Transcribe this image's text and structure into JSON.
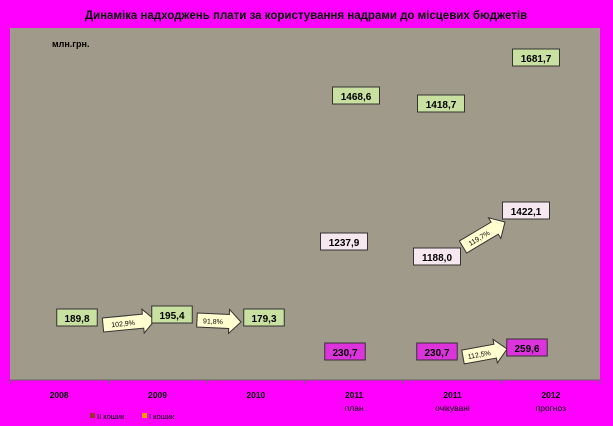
{
  "chart_data": {
    "type": "bar",
    "title": "Динаміка надходжень плати за користування надрами до місцевих бюджетів",
    "unit_label": "млн.грн.",
    "categories": [
      {
        "year": "2008",
        "sub": ""
      },
      {
        "year": "2009",
        "sub": ""
      },
      {
        "year": "2010",
        "sub": ""
      },
      {
        "year": "2011",
        "sub": "план"
      },
      {
        "year": "2011",
        "sub": "очікувані"
      },
      {
        "year": "2012",
        "sub": "прогноз"
      }
    ],
    "series": [
      {
        "name": "II кошик",
        "color": "#993333",
        "values": [
          null,
          null,
          null,
          1468.6,
          1418.7,
          1681.7
        ],
        "labels": [
          null,
          null,
          null,
          "1468,6",
          "1418,7",
          "1681,7"
        ],
        "box_color": "#c8e0a0"
      },
      {
        "name": "I кошик",
        "color": "#ff9900",
        "values": [
          189.8,
          195.4,
          179.3,
          1237.9,
          1188.0,
          1422.1
        ],
        "labels": [
          "189,8",
          "195,4",
          "179,3",
          "1237,9",
          "1188,0",
          "1422,1"
        ]
      },
      {
        "name": "",
        "values": [
          null,
          null,
          null,
          230.7,
          230.7,
          259.6
        ],
        "labels": [
          null,
          null,
          null,
          "230,7",
          "230,7",
          "259,6"
        ],
        "box_color": "#dd33dd"
      }
    ],
    "arrows": [
      {
        "from": 0,
        "to": 1,
        "label": "102,9%"
      },
      {
        "from": 1,
        "to": 2,
        "label": "91,8%"
      },
      {
        "from": 4,
        "to": 5,
        "label": "119,7%"
      },
      {
        "from": 4,
        "to": 5,
        "label": "112,5%"
      }
    ],
    "legend_position": "bottom-left",
    "colors": {
      "page": "#ff00ff",
      "plot": "#a09a8a",
      "box_green": "#c8e0a0",
      "box_pink": "#f7e8ef",
      "box_magenta": "#dd33dd",
      "arrow_fill": "#ffffd0"
    }
  }
}
